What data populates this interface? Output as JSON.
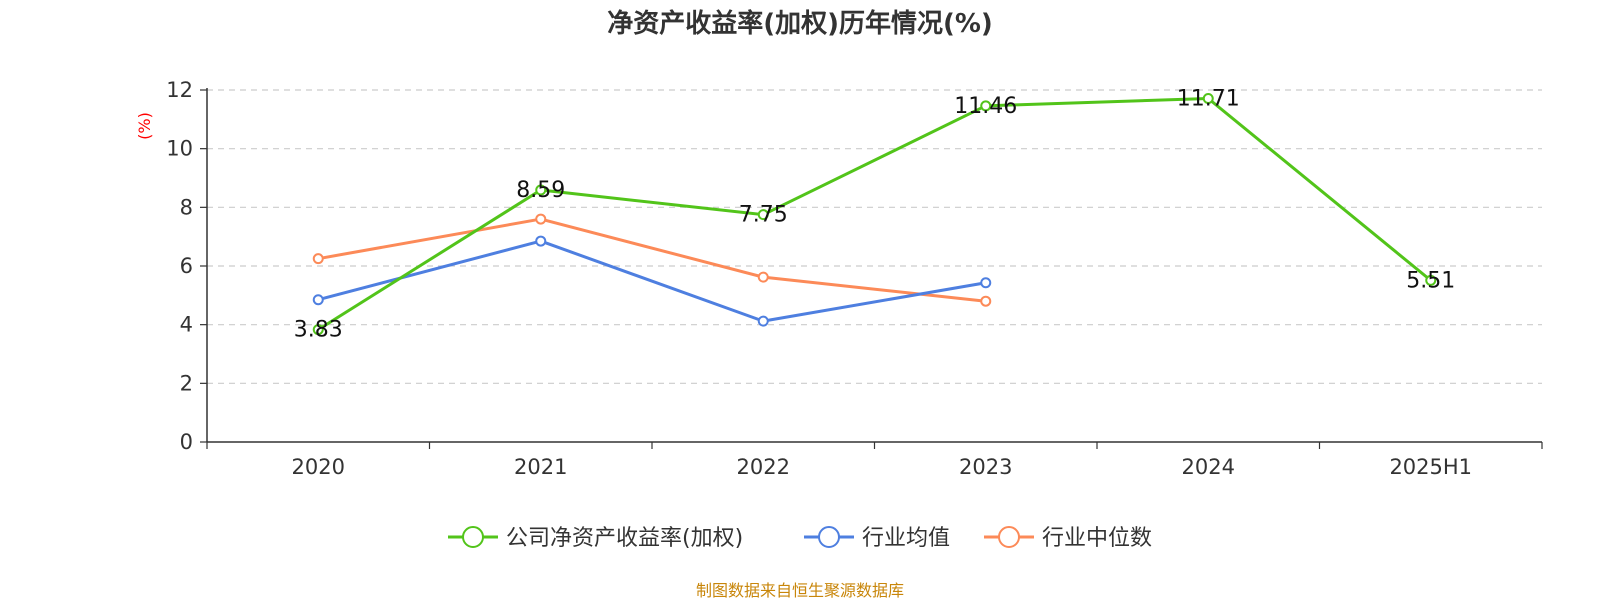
{
  "chart_data": {
    "type": "line",
    "title": "净资产收益率(加权)历年情况(%)",
    "ylabel": "(%)",
    "categories": [
      "2020",
      "2021",
      "2022",
      "2023",
      "2024",
      "2025H1"
    ],
    "ylim": [
      0,
      12
    ],
    "yticks": [
      0,
      2,
      4,
      6,
      8,
      10,
      12
    ],
    "grid": true,
    "legend_position": "bottom",
    "series": [
      {
        "name": "公司净资产收益率(加权)",
        "color": "#52c41a",
        "values": [
          3.83,
          8.59,
          7.75,
          11.46,
          11.71,
          5.51
        ],
        "labels": [
          "3.83",
          "8.59",
          "7.75",
          "11.46",
          "11.71",
          "5.51"
        ]
      },
      {
        "name": "行业均值",
        "color": "#4e7fe0",
        "values": [
          4.85,
          6.85,
          4.12,
          5.43,
          null,
          null
        ]
      },
      {
        "name": "行业中位数",
        "color": "#fc8a58",
        "values": [
          6.25,
          7.6,
          5.62,
          4.8,
          null,
          null
        ]
      }
    ]
  },
  "source": "制图数据来自恒生聚源数据库"
}
